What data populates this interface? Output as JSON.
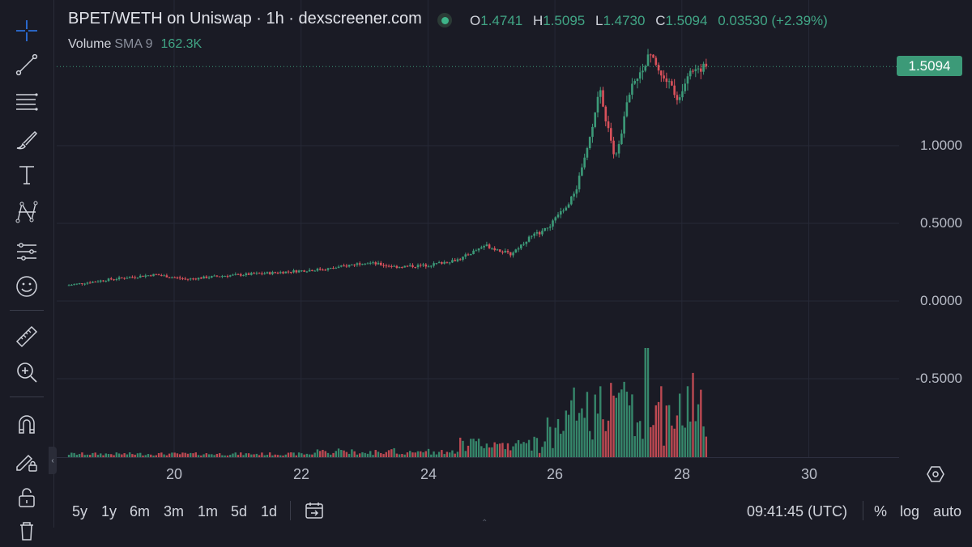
{
  "legend": {
    "title": "BPET/WETH on Uniswap · 1h · dexscreener.com",
    "ohlc": {
      "o_key": "O",
      "o_val": "1.4741",
      "h_key": "H",
      "h_val": "1.5095",
      "l_key": "L",
      "l_val": "1.4730",
      "c_key": "C",
      "c_val": "1.5094",
      "change": "0.03530 (+2.39%)"
    },
    "volume_label": "Volume",
    "volume_sma": "SMA 9",
    "volume_value": "162.3K"
  },
  "price_scale": {
    "labels": [
      "1.0000",
      "0.5000",
      "0.0000",
      "-0.5000"
    ],
    "last_price": "1.5094"
  },
  "time_axis": {
    "labels": [
      "20",
      "22",
      "24",
      "26",
      "28",
      "30"
    ]
  },
  "bottom_bar": {
    "ranges": [
      "5y",
      "1y",
      "6m",
      "3m",
      "1m",
      "5d",
      "1d"
    ],
    "clock": "09:41:45 (UTC)",
    "percent_label": "%",
    "log_label": "log",
    "auto_label": "auto"
  },
  "toolbar": {
    "tools": [
      "crosshair-icon",
      "trend-line-icon",
      "horizontal-lines-icon",
      "brush-icon",
      "text-icon",
      "pattern-icon",
      "prediction-icon",
      "emoji-icon",
      "ruler-icon",
      "zoom-in-icon",
      "magnet-icon",
      "lock-drawings-icon",
      "unlock-icon",
      "trash-icon"
    ]
  },
  "colors": {
    "up": "#3c9a78",
    "down": "#d9515b",
    "background": "#1a1b25",
    "grid": "#262836"
  },
  "chart_data": {
    "type": "candlestick",
    "timeframe": "1h",
    "y_ticks": [
      1.0,
      0.5,
      0.0,
      -0.5
    ],
    "last_close": 1.5094,
    "x_ticks": [
      "20",
      "22",
      "24",
      "26",
      "28",
      "30"
    ],
    "trend_points": [
      {
        "day": 18.3,
        "price": 0.1
      },
      {
        "day": 19.0,
        "price": 0.14
      },
      {
        "day": 19.7,
        "price": 0.17
      },
      {
        "day": 20.2,
        "price": 0.14
      },
      {
        "day": 20.7,
        "price": 0.16
      },
      {
        "day": 21.5,
        "price": 0.18
      },
      {
        "day": 22.5,
        "price": 0.21
      },
      {
        "day": 23.0,
        "price": 0.25
      },
      {
        "day": 23.5,
        "price": 0.22
      },
      {
        "day": 24.0,
        "price": 0.23
      },
      {
        "day": 24.5,
        "price": 0.27
      },
      {
        "day": 24.9,
        "price": 0.36
      },
      {
        "day": 25.3,
        "price": 0.3
      },
      {
        "day": 25.6,
        "price": 0.41
      },
      {
        "day": 25.9,
        "price": 0.47
      },
      {
        "day": 26.3,
        "price": 0.68
      },
      {
        "day": 26.5,
        "price": 0.95
      },
      {
        "day": 26.7,
        "price": 1.36
      },
      {
        "day": 26.95,
        "price": 0.9
      },
      {
        "day": 27.2,
        "price": 1.4
      },
      {
        "day": 27.5,
        "price": 1.58
      },
      {
        "day": 27.7,
        "price": 1.45
      },
      {
        "day": 27.95,
        "price": 1.3
      },
      {
        "day": 28.1,
        "price": 1.48
      },
      {
        "day": 28.4,
        "price": 1.5094
      }
    ]
  }
}
